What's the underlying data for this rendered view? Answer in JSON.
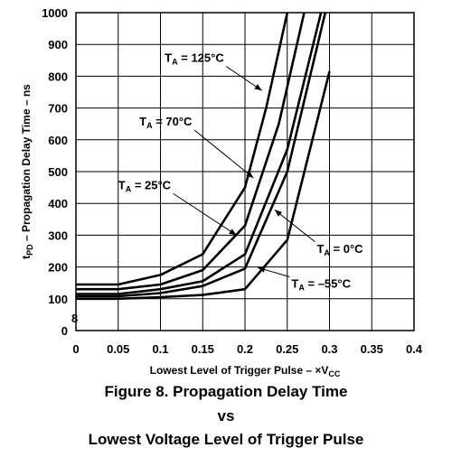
{
  "chart_data": {
    "type": "line",
    "xlabel_main": "Lowest Level of Trigger Pulse – ×V",
    "xlabel_sub": "CC",
    "ylabel_pre": "t",
    "ylabel_sub": "PD",
    "ylabel_main": " – Propagation Delay Time – ns",
    "xlim": [
      0,
      0.4
    ],
    "ylim": [
      0,
      1000
    ],
    "x_ticks": [
      "0",
      "0.05",
      "0.1",
      "0.15",
      "0.2",
      "0.25",
      "0.3",
      "0.35",
      "0.4"
    ],
    "y_ticks": [
      "0",
      "100",
      "200",
      "300",
      "400",
      "500",
      "600",
      "700",
      "800",
      "900",
      "1000"
    ],
    "grid": true,
    "stray_mark": "8",
    "series": [
      {
        "name": "T_A = 125°C",
        "label_main": "T",
        "label_sub": "A",
        "label_rest": " = 125°C",
        "x": [
          0,
          0.05,
          0.1,
          0.15,
          0.2,
          0.225,
          0.25
        ],
        "y": [
          145,
          145,
          175,
          240,
          450,
          700,
          1000
        ]
      },
      {
        "name": "T_A = 70°C",
        "label_main": "T",
        "label_sub": "A",
        "label_rest": " = 70°C",
        "x": [
          0,
          0.05,
          0.1,
          0.15,
          0.2,
          0.24,
          0.27
        ],
        "y": [
          130,
          130,
          145,
          190,
          330,
          650,
          1000
        ]
      },
      {
        "name": "T_A = 25°C",
        "label_main": "T",
        "label_sub": "A",
        "label_rest": " = 25°C",
        "x": [
          0,
          0.05,
          0.1,
          0.15,
          0.2,
          0.25,
          0.29
        ],
        "y": [
          115,
          115,
          130,
          155,
          240,
          570,
          1000
        ]
      },
      {
        "name": "T_A = 0°C",
        "label_main": "T",
        "label_sub": "A",
        "label_rest": " = 0°C",
        "x": [
          0,
          0.05,
          0.1,
          0.15,
          0.2,
          0.25,
          0.295
        ],
        "y": [
          108,
          108,
          118,
          140,
          195,
          500,
          1000
        ]
      },
      {
        "name": "T_A = –55°C",
        "label_main": "T",
        "label_sub": "A",
        "label_rest": " = –55°C",
        "x": [
          0,
          0.05,
          0.1,
          0.15,
          0.2,
          0.25,
          0.3
        ],
        "y": [
          100,
          100,
          105,
          112,
          130,
          285,
          815
        ]
      }
    ],
    "annotations": [
      {
        "series": 0,
        "text_x": 0.105,
        "text_y": 845,
        "point_x": 0.22,
        "point_y": 755
      },
      {
        "series": 1,
        "text_x": 0.075,
        "text_y": 645,
        "point_x": 0.21,
        "point_y": 480
      },
      {
        "series": 2,
        "text_x": 0.05,
        "text_y": 445,
        "point_x": 0.19,
        "point_y": 300
      },
      {
        "series": 3,
        "text_x": 0.285,
        "text_y": 245,
        "point_x": 0.235,
        "point_y": 380
      },
      {
        "series": 4,
        "text_x": 0.255,
        "text_y": 135,
        "point_x": 0.215,
        "point_y": 198
      }
    ]
  },
  "caption": {
    "line1": "Figure 8. Propagation Delay Time",
    "line2": "vs",
    "line3": "Lowest Voltage Level of Trigger Pulse"
  }
}
